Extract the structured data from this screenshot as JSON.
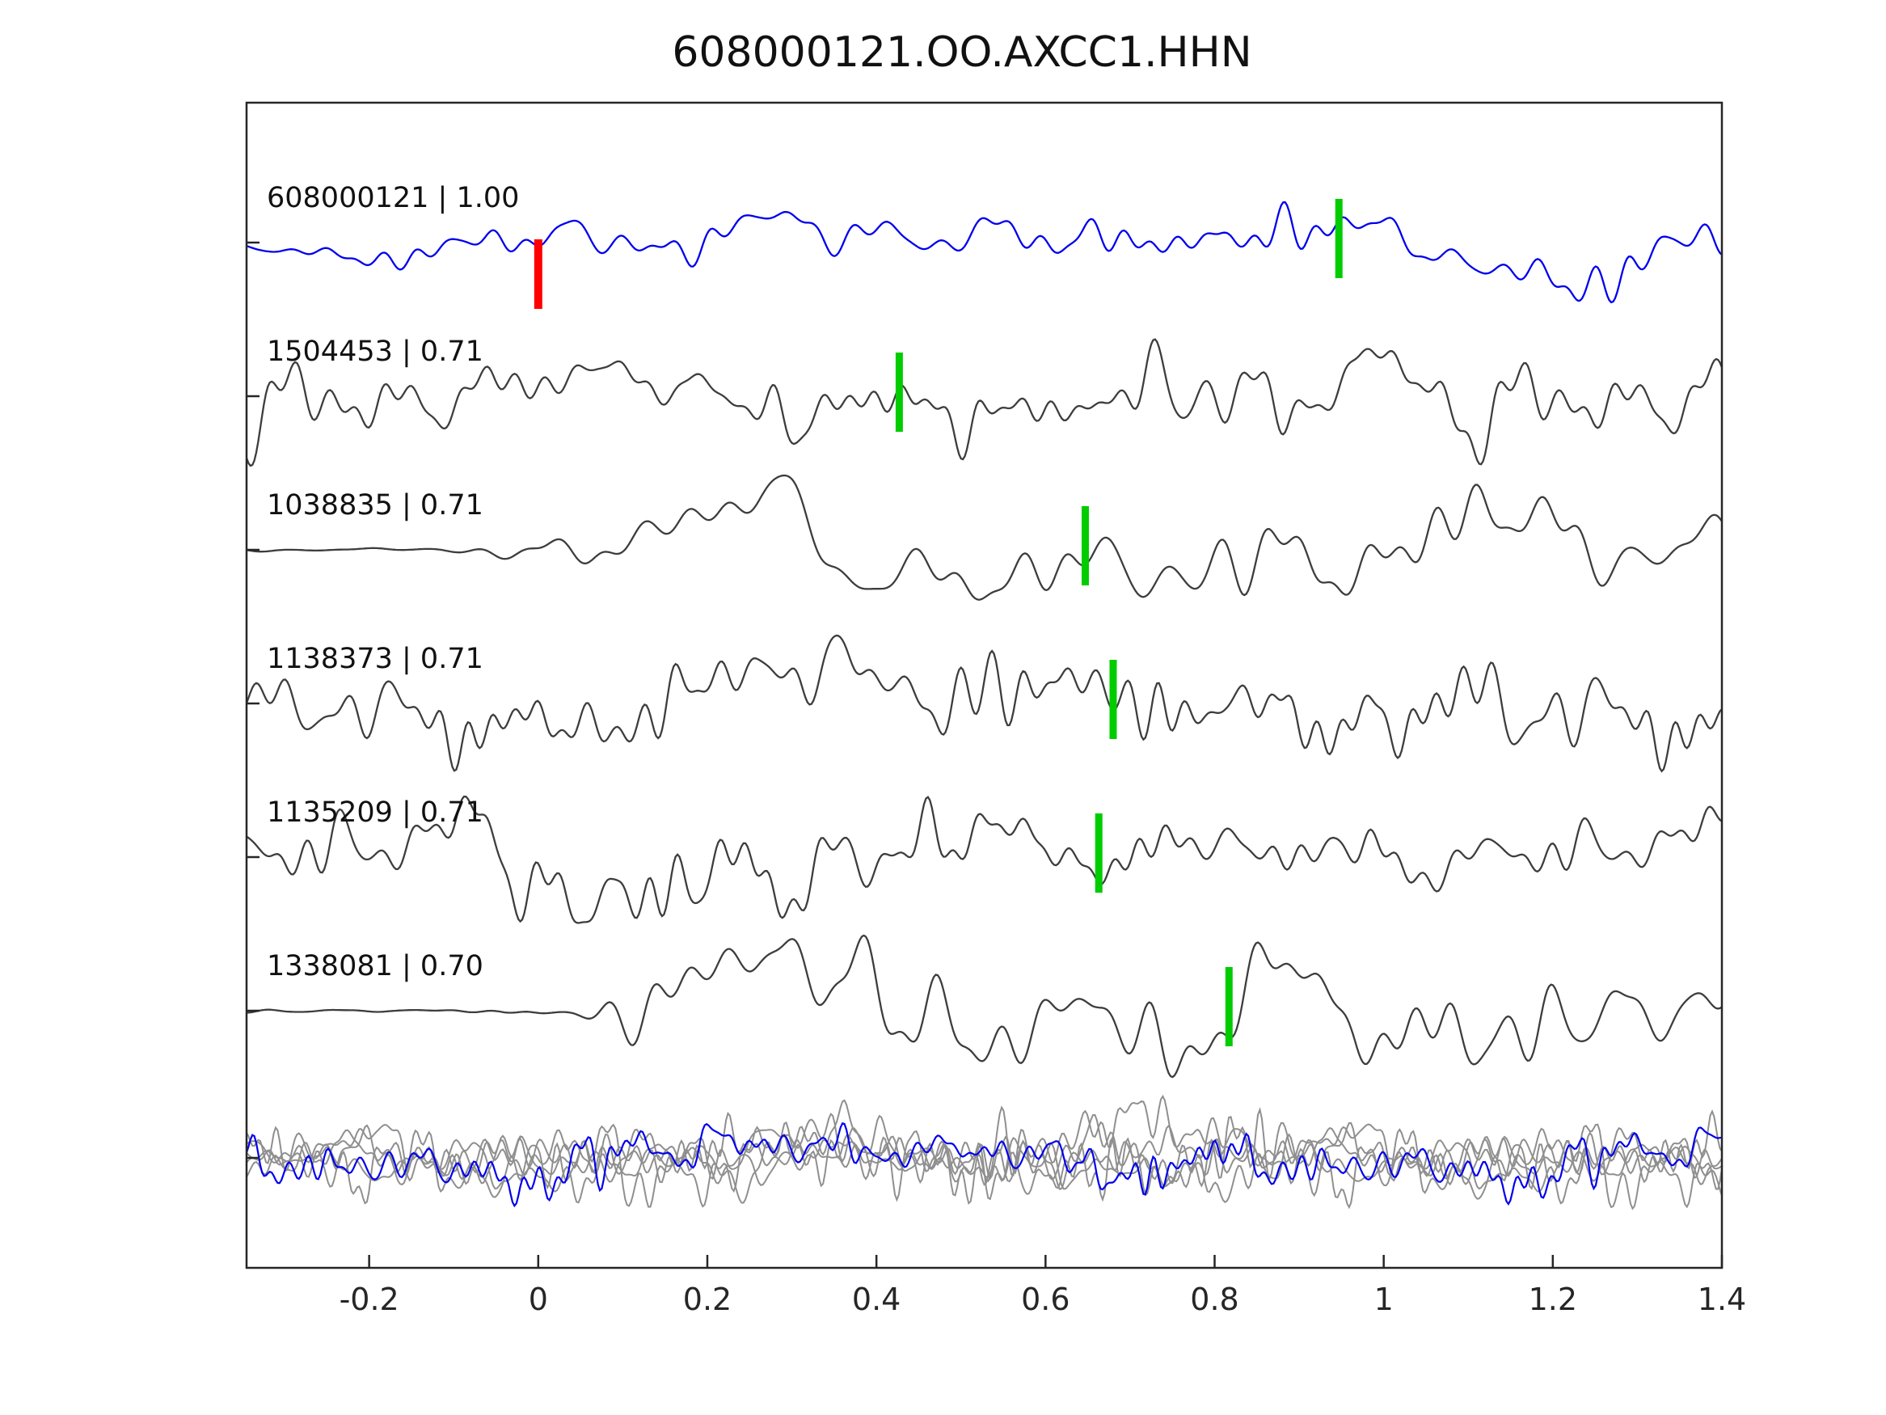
{
  "title": "608000121.OO.AXCC1.HHN",
  "chart_data": {
    "type": "line",
    "title": "608000121.OO.AXCC1.HHN",
    "xlabel": "",
    "ylabel": "",
    "xlim": [
      -0.345,
      1.4
    ],
    "xticks": [
      -0.2,
      0,
      0.2,
      0.4,
      0.6,
      0.8,
      1,
      1.2,
      1.4
    ],
    "xtick_labels": [
      "-0.2",
      "0",
      "0.2",
      "0.4",
      "0.6",
      "0.8",
      "1",
      "1.2",
      "1.4"
    ],
    "grid": false,
    "legend": "none",
    "colors": {
      "template_trace": "#0000ee",
      "match_trace": "#3d3d3d",
      "overlay_gray_trace": "#8f8f8f",
      "overlay_blue_trace": "#0000ee",
      "pick_marker": "#00cc00",
      "reference_marker": "#ff0000",
      "axis": "#262626"
    },
    "traces": [
      {
        "id": "608000121",
        "correlation": "1.00",
        "label": "608000121 | 1.00",
        "role": "template",
        "pick_x": 0.947,
        "ref_x": 0.0
      },
      {
        "id": "1504453",
        "correlation": "0.71",
        "label": "1504453 | 0.71",
        "role": "match",
        "pick_x": 0.427
      },
      {
        "id": "1038835",
        "correlation": "0.71",
        "label": "1038835 | 0.71",
        "role": "match",
        "pick_x": 0.647
      },
      {
        "id": "1138373",
        "correlation": "0.71",
        "label": "1138373 | 0.71",
        "role": "match",
        "pick_x": 0.68
      },
      {
        "id": "1135209",
        "correlation": "0.71",
        "label": "1135209 | 0.71",
        "role": "match",
        "pick_x": 0.663
      },
      {
        "id": "1338081",
        "correlation": "0.70",
        "label": "1338081 | 0.70",
        "role": "match",
        "pick_x": 0.817
      }
    ],
    "overlay": {
      "description": "superposed unlabeled traces at bottom of axes",
      "gray_trace_count": 5,
      "blue_trace_count": 1
    }
  }
}
